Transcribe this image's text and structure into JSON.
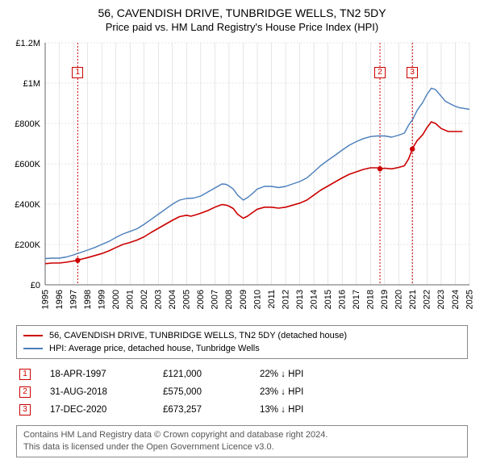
{
  "title_main": "56, CAVENDISH DRIVE, TUNBRIDGE WELLS, TN2 5DY",
  "title_sub": "Price paid vs. HM Land Registry's House Price Index (HPI)",
  "chart": {
    "type": "line",
    "background_color": "#ffffff",
    "xlim": [
      1995,
      2025
    ],
    "ylim": [
      0,
      1200000
    ],
    "ytick_step": 200000,
    "ytick_labels": [
      "£0",
      "£200K",
      "£400K",
      "£600K",
      "£800K",
      "£1M",
      "£1.2M"
    ],
    "xtick_step": 1,
    "xtick_labels": [
      "1995",
      "1996",
      "1997",
      "1998",
      "1999",
      "2000",
      "2001",
      "2002",
      "2003",
      "2004",
      "2005",
      "2006",
      "2007",
      "2008",
      "2009",
      "2010",
      "2011",
      "2012",
      "2013",
      "2014",
      "2015",
      "2016",
      "2017",
      "2018",
      "2019",
      "2020",
      "2021",
      "2022",
      "2023",
      "2024",
      "2025"
    ],
    "grid_color": "#cccccc",
    "grid_width": 0.5,
    "ygrid_dash": "2,2",
    "xgrid_dash": "none",
    "axis_color": "#666666",
    "series": [
      {
        "name": "red",
        "label": "56, CAVENDISH DRIVE, TUNBRIDGE WELLS, TN2 5DY (detached house)",
        "color": "#cc0000",
        "width": 1.6,
        "points": [
          [
            1995.0,
            105000
          ],
          [
            1995.5,
            108000
          ],
          [
            1996.0,
            108000
          ],
          [
            1996.5,
            112000
          ],
          [
            1997.0,
            118000
          ],
          [
            1997.3,
            121000
          ],
          [
            1997.5,
            126000
          ],
          [
            1998.0,
            135000
          ],
          [
            1998.5,
            145000
          ],
          [
            1999.0,
            155000
          ],
          [
            1999.5,
            168000
          ],
          [
            2000.0,
            185000
          ],
          [
            2000.5,
            200000
          ],
          [
            2001.0,
            210000
          ],
          [
            2001.5,
            222000
          ],
          [
            2002.0,
            238000
          ],
          [
            2002.5,
            260000
          ],
          [
            2003.0,
            280000
          ],
          [
            2003.5,
            300000
          ],
          [
            2004.0,
            320000
          ],
          [
            2004.5,
            338000
          ],
          [
            2005.0,
            345000
          ],
          [
            2005.3,
            340000
          ],
          [
            2005.7,
            348000
          ],
          [
            2006.0,
            355000
          ],
          [
            2006.5,
            368000
          ],
          [
            2007.0,
            385000
          ],
          [
            2007.5,
            398000
          ],
          [
            2007.8,
            395000
          ],
          [
            2008.0,
            390000
          ],
          [
            2008.3,
            378000
          ],
          [
            2008.6,
            350000
          ],
          [
            2009.0,
            330000
          ],
          [
            2009.3,
            340000
          ],
          [
            2009.7,
            360000
          ],
          [
            2010.0,
            375000
          ],
          [
            2010.5,
            385000
          ],
          [
            2011.0,
            385000
          ],
          [
            2011.5,
            380000
          ],
          [
            2012.0,
            385000
          ],
          [
            2012.5,
            395000
          ],
          [
            2013.0,
            405000
          ],
          [
            2013.5,
            420000
          ],
          [
            2014.0,
            445000
          ],
          [
            2014.5,
            470000
          ],
          [
            2015.0,
            490000
          ],
          [
            2015.5,
            510000
          ],
          [
            2016.0,
            530000
          ],
          [
            2016.5,
            548000
          ],
          [
            2017.0,
            560000
          ],
          [
            2017.5,
            572000
          ],
          [
            2018.0,
            580000
          ],
          [
            2018.5,
            580000
          ],
          [
            2018.67,
            575000
          ],
          [
            2019.0,
            578000
          ],
          [
            2019.5,
            575000
          ],
          [
            2020.0,
            582000
          ],
          [
            2020.4,
            590000
          ],
          [
            2020.7,
            625000
          ],
          [
            2020.96,
            673257
          ],
          [
            2021.0,
            680000
          ],
          [
            2021.3,
            715000
          ],
          [
            2021.7,
            745000
          ],
          [
            2022.0,
            780000
          ],
          [
            2022.3,
            808000
          ],
          [
            2022.6,
            800000
          ],
          [
            2023.0,
            775000
          ],
          [
            2023.5,
            760000
          ],
          [
            2024.0,
            760000
          ],
          [
            2024.5,
            760000
          ]
        ]
      },
      {
        "name": "blue",
        "label": "HPI: Average price, detached house, Tunbridge Wells",
        "color": "#4a7ebb",
        "width": 1.4,
        "points": [
          [
            1995.0,
            130000
          ],
          [
            1995.5,
            132000
          ],
          [
            1996.0,
            132000
          ],
          [
            1996.5,
            138000
          ],
          [
            1997.0,
            148000
          ],
          [
            1997.5,
            160000
          ],
          [
            1998.0,
            172000
          ],
          [
            1998.5,
            185000
          ],
          [
            1999.0,
            200000
          ],
          [
            1999.5,
            215000
          ],
          [
            2000.0,
            235000
          ],
          [
            2000.5,
            252000
          ],
          [
            2001.0,
            265000
          ],
          [
            2001.5,
            278000
          ],
          [
            2002.0,
            300000
          ],
          [
            2002.5,
            325000
          ],
          [
            2003.0,
            350000
          ],
          [
            2003.5,
            375000
          ],
          [
            2004.0,
            400000
          ],
          [
            2004.5,
            420000
          ],
          [
            2005.0,
            428000
          ],
          [
            2005.5,
            430000
          ],
          [
            2006.0,
            440000
          ],
          [
            2006.5,
            460000
          ],
          [
            2007.0,
            480000
          ],
          [
            2007.5,
            500000
          ],
          [
            2007.8,
            498000
          ],
          [
            2008.0,
            490000
          ],
          [
            2008.3,
            475000
          ],
          [
            2008.6,
            445000
          ],
          [
            2009.0,
            420000
          ],
          [
            2009.3,
            432000
          ],
          [
            2009.7,
            455000
          ],
          [
            2010.0,
            475000
          ],
          [
            2010.5,
            488000
          ],
          [
            2011.0,
            488000
          ],
          [
            2011.5,
            482000
          ],
          [
            2012.0,
            488000
          ],
          [
            2012.5,
            500000
          ],
          [
            2013.0,
            512000
          ],
          [
            2013.5,
            530000
          ],
          [
            2014.0,
            560000
          ],
          [
            2014.5,
            592000
          ],
          [
            2015.0,
            618000
          ],
          [
            2015.5,
            642000
          ],
          [
            2016.0,
            668000
          ],
          [
            2016.5,
            692000
          ],
          [
            2017.0,
            710000
          ],
          [
            2017.5,
            725000
          ],
          [
            2018.0,
            735000
          ],
          [
            2018.5,
            738000
          ],
          [
            2019.0,
            738000
          ],
          [
            2019.5,
            732000
          ],
          [
            2020.0,
            742000
          ],
          [
            2020.4,
            752000
          ],
          [
            2020.7,
            792000
          ],
          [
            2021.0,
            822000
          ],
          [
            2021.3,
            865000
          ],
          [
            2021.7,
            905000
          ],
          [
            2022.0,
            945000
          ],
          [
            2022.3,
            975000
          ],
          [
            2022.6,
            968000
          ],
          [
            2023.0,
            935000
          ],
          [
            2023.3,
            910000
          ],
          [
            2023.7,
            895000
          ],
          [
            2024.0,
            885000
          ],
          [
            2024.3,
            878000
          ],
          [
            2024.6,
            875000
          ],
          [
            2025.0,
            870000
          ]
        ]
      }
    ],
    "markers": [
      {
        "n": "1",
        "x": 1997.3,
        "y": 121000,
        "point_color": "#cc0000"
      },
      {
        "n": "2",
        "x": 2018.67,
        "y": 575000,
        "point_color": "#cc0000"
      },
      {
        "n": "3",
        "x": 2020.96,
        "y": 673257,
        "point_color": "#cc0000"
      }
    ],
    "marker_vline_color": "#cc0000",
    "marker_vline_dash": "2,2",
    "marker_box_border": "#cc0000",
    "marker_box_text": "#cc0000",
    "marker_dot_radius": 3.2,
    "label_fontsize": 11,
    "xlabel_rotation": -90
  },
  "legend": {
    "border_color": "#888888",
    "rows": [
      {
        "color": "#cc0000",
        "text": "56, CAVENDISH DRIVE, TUNBRIDGE WELLS, TN2 5DY (detached house)"
      },
      {
        "color": "#4a7ebb",
        "text": "HPI: Average price, detached house, Tunbridge Wells"
      }
    ]
  },
  "events": [
    {
      "n": "1",
      "date": "18-APR-1997",
      "price": "£121,000",
      "diff": "22% ↓ HPI"
    },
    {
      "n": "2",
      "date": "31-AUG-2018",
      "price": "£575,000",
      "diff": "23% ↓ HPI"
    },
    {
      "n": "3",
      "date": "17-DEC-2020",
      "price": "£673,257",
      "diff": "13% ↓ HPI"
    }
  ],
  "event_marker_color": "#cc0000",
  "attribution_line1": "Contains HM Land Registry data © Crown copyright and database right 2024.",
  "attribution_line2": "This data is licensed under the Open Government Licence v3.0."
}
